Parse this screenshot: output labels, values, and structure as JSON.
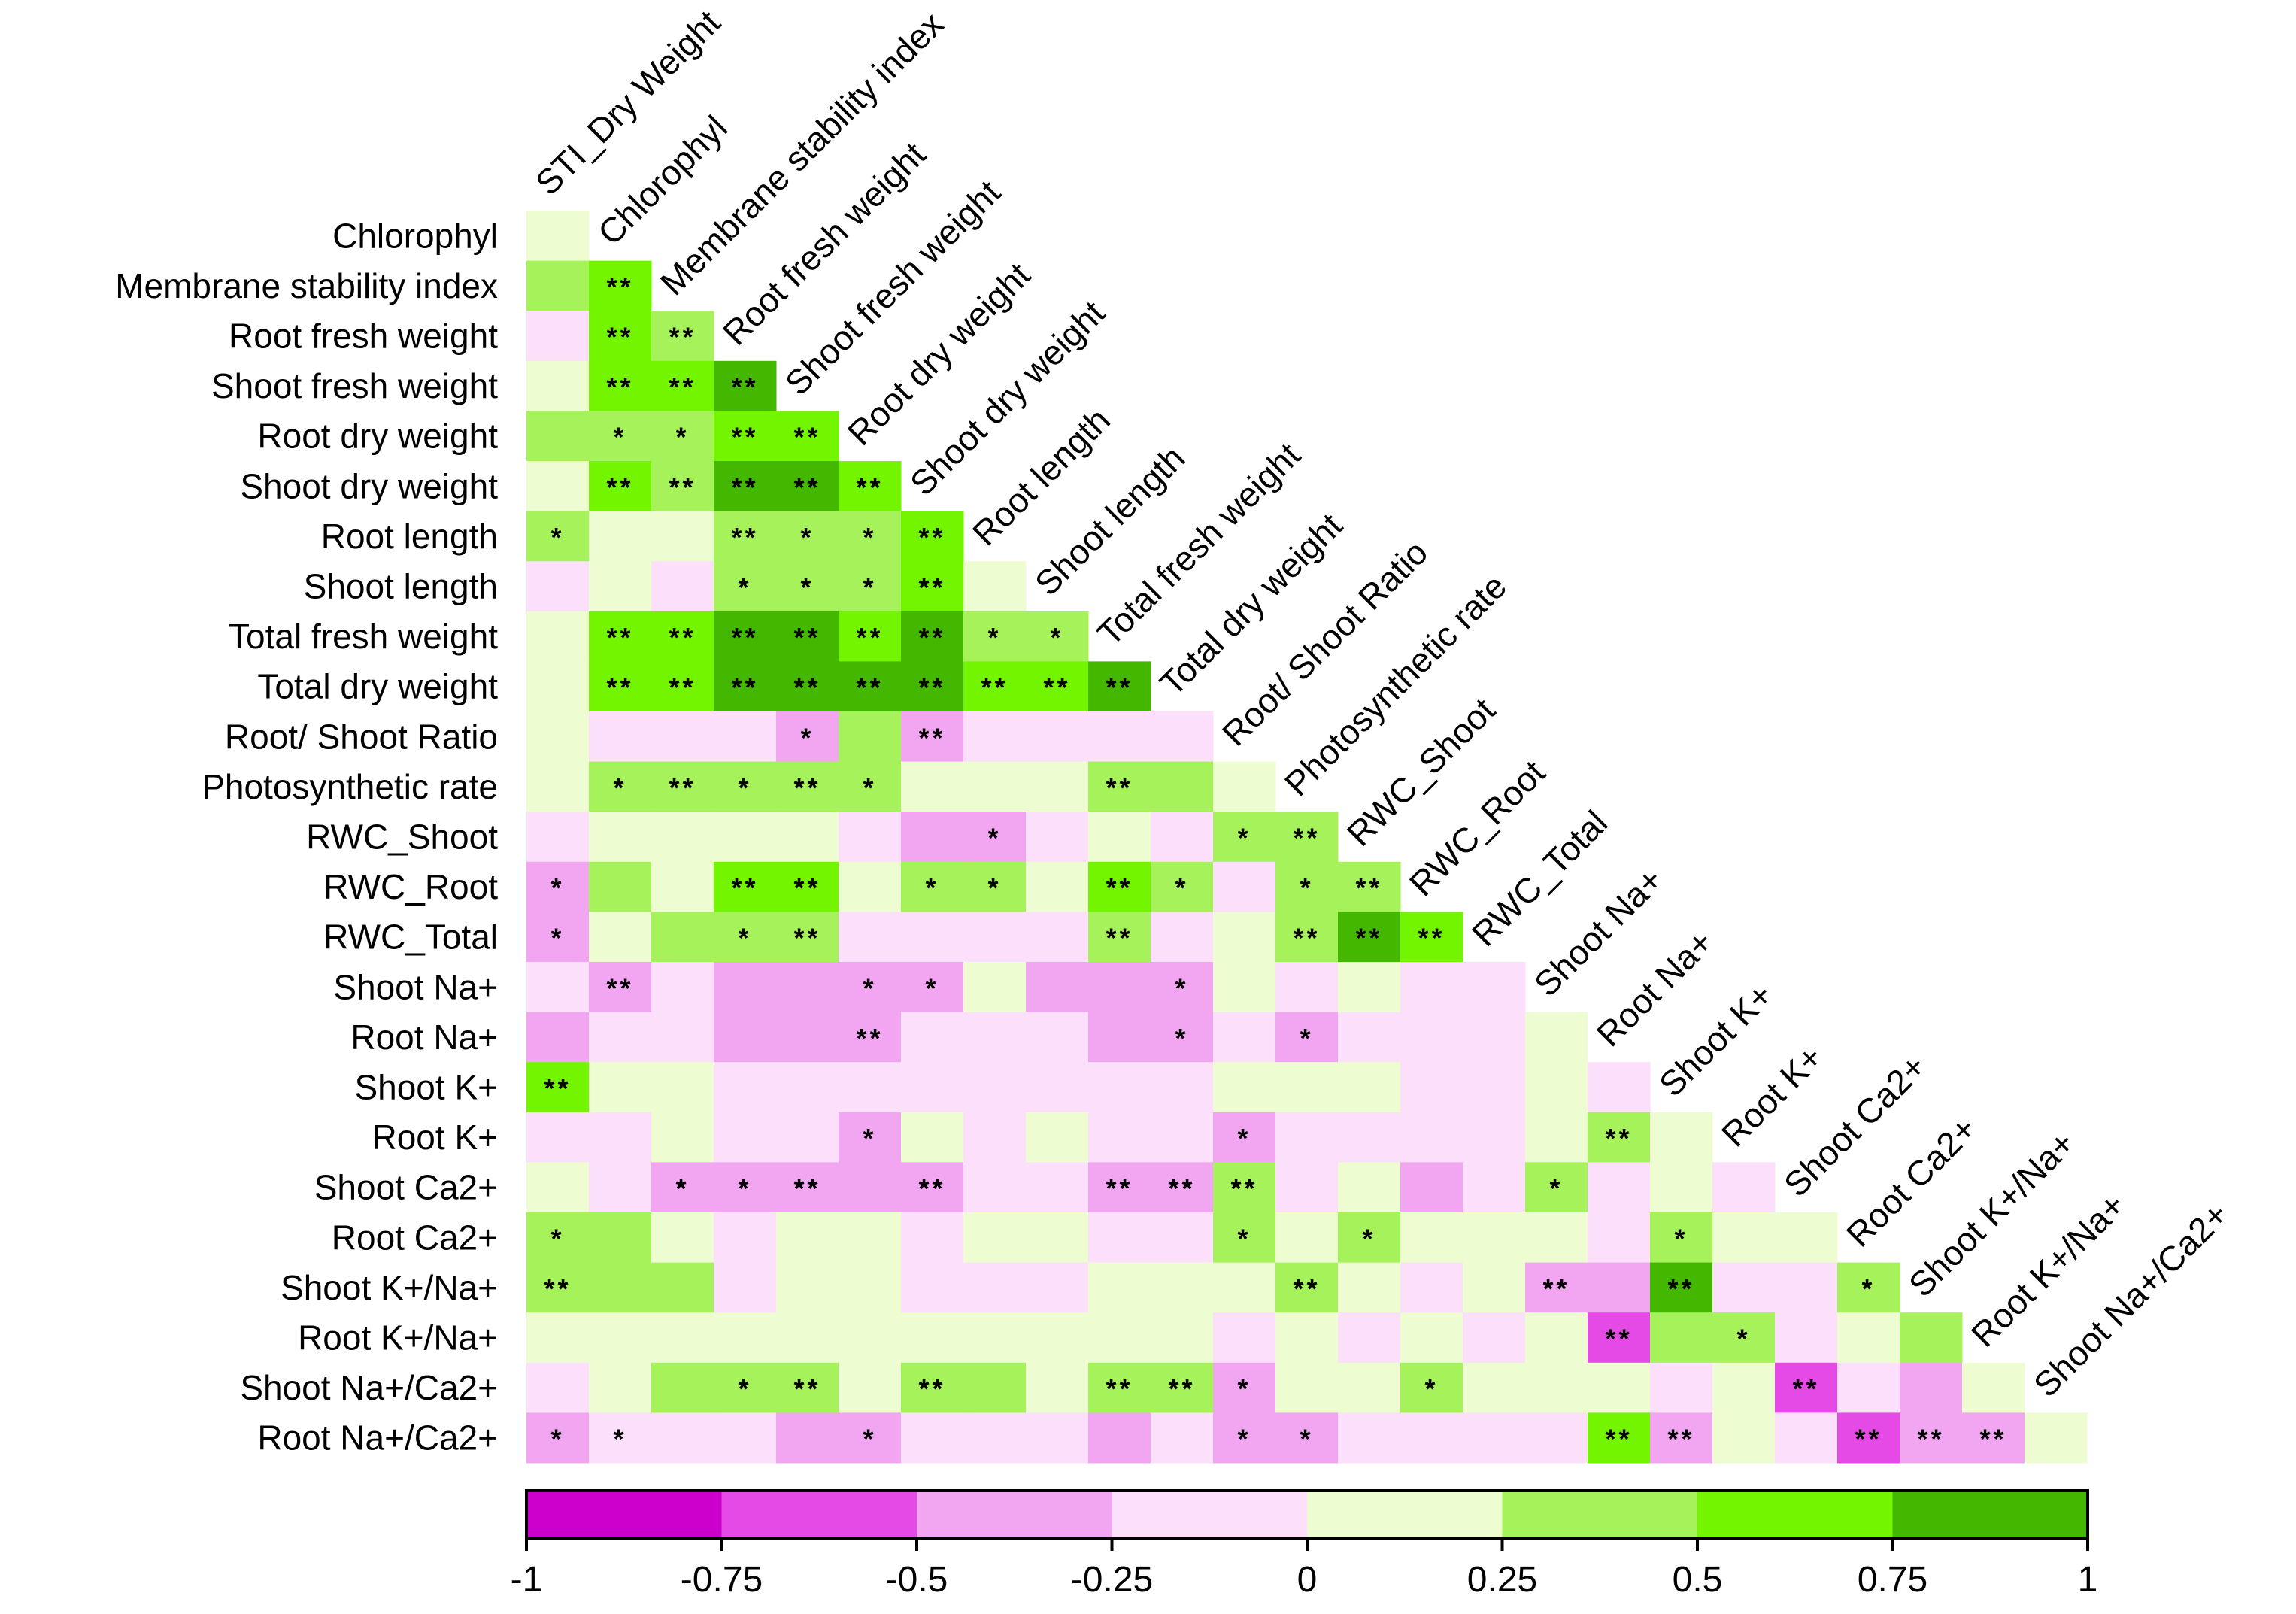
{
  "chart_data": {
    "type": "heatmap",
    "title": "",
    "row_labels": [
      "Chlorophyl",
      "Membrane stability index",
      "Root fresh weight",
      "Shoot fresh weight",
      "Root dry weight",
      "Shoot dry weight",
      "Root length",
      "Shoot length",
      "Total fresh weight",
      "Total dry weight",
      "Root/ Shoot Ratio",
      "Photosynthetic rate",
      "RWC_Shoot",
      "RWC_Root",
      "RWC_Total",
      "Shoot Na+",
      "Root Na+",
      "Shoot K+",
      "Root K+",
      "Shoot Ca2+",
      "Root Ca2+",
      "Shoot K+/Na+",
      "Root K+/Na+",
      "Shoot Na+/Ca2+",
      "Root Na+/Ca2+"
    ],
    "column_labels": [
      "STI_Dry Weight",
      "Chlorophyl",
      "Membrane stability index",
      "Root fresh weight",
      "Shoot fresh weight",
      "Root dry weight",
      "Shoot dry weight",
      "Root length",
      "Shoot length",
      "Total fresh weight",
      "Total dry weight",
      "Root/ Shoot Ratio",
      "Photosynthetic rate",
      "RWC_Shoot",
      "RWC_Root",
      "RWC_Total",
      "Shoot Na+",
      "Root Na+",
      "Shoot K+",
      "Root K+",
      "Shoot Ca2+",
      "Root Ca2+",
      "Shoot K+/Na+",
      "Root K+/Na+",
      "Shoot Na+/Ca2+"
    ],
    "values": [
      [
        0.1
      ],
      [
        0.4,
        0.6
      ],
      [
        -0.1,
        0.6,
        0.4
      ],
      [
        0.1,
        0.6,
        0.6,
        0.9
      ],
      [
        0.4,
        0.4,
        0.4,
        0.6,
        0.6
      ],
      [
        0.1,
        0.6,
        0.4,
        0.9,
        0.9,
        0.6
      ],
      [
        0.4,
        0.1,
        0.1,
        0.4,
        0.4,
        0.4,
        0.6
      ],
      [
        -0.1,
        0.1,
        -0.1,
        0.4,
        0.4,
        0.4,
        0.6,
        0.1
      ],
      [
        0.1,
        0.6,
        0.6,
        0.9,
        0.9,
        0.6,
        0.9,
        0.4,
        0.4
      ],
      [
        0.1,
        0.6,
        0.6,
        0.9,
        0.9,
        0.9,
        0.9,
        0.6,
        0.6,
        0.9
      ],
      [
        0.1,
        -0.1,
        -0.1,
        -0.1,
        -0.4,
        0.4,
        -0.4,
        -0.1,
        -0.1,
        -0.1,
        -0.1
      ],
      [
        0.1,
        0.4,
        0.4,
        0.4,
        0.4,
        0.4,
        0.1,
        0.1,
        0.1,
        0.4,
        0.4,
        0.1
      ],
      [
        -0.1,
        0.1,
        0.1,
        0.1,
        0.1,
        -0.1,
        -0.4,
        -0.4,
        -0.1,
        0.1,
        -0.1,
        0.4,
        0.4
      ],
      [
        -0.4,
        0.4,
        0.1,
        0.6,
        0.6,
        0.1,
        0.4,
        0.4,
        0.1,
        0.6,
        0.4,
        -0.1,
        0.4,
        0.4
      ],
      [
        -0.4,
        0.1,
        0.4,
        0.4,
        0.4,
        -0.1,
        -0.1,
        -0.1,
        -0.1,
        0.4,
        -0.1,
        0.1,
        0.4,
        0.9,
        0.6
      ],
      [
        -0.1,
        -0.4,
        -0.1,
        -0.4,
        -0.4,
        -0.4,
        -0.4,
        0.1,
        -0.4,
        -0.4,
        -0.4,
        0.1,
        -0.1,
        0.1,
        -0.1,
        -0.1
      ],
      [
        -0.4,
        -0.1,
        -0.1,
        -0.4,
        -0.4,
        -0.4,
        -0.1,
        -0.1,
        -0.1,
        -0.4,
        -0.4,
        -0.1,
        -0.4,
        -0.1,
        -0.1,
        -0.1,
        0.1
      ],
      [
        0.6,
        0.1,
        0.1,
        -0.1,
        -0.1,
        -0.1,
        -0.1,
        -0.1,
        -0.1,
        -0.1,
        -0.1,
        0.1,
        0.1,
        0.1,
        -0.1,
        -0.1,
        0.1,
        -0.1
      ],
      [
        -0.1,
        -0.1,
        0.1,
        -0.1,
        -0.1,
        -0.4,
        0.1,
        -0.1,
        0.1,
        -0.1,
        -0.1,
        -0.4,
        -0.1,
        -0.1,
        -0.1,
        -0.1,
        0.1,
        0.4,
        0.1
      ],
      [
        0.1,
        -0.1,
        -0.4,
        -0.4,
        -0.4,
        -0.4,
        -0.4,
        -0.1,
        -0.1,
        -0.4,
        -0.4,
        0.4,
        -0.1,
        0.1,
        -0.4,
        -0.1,
        0.4,
        -0.1,
        0.1,
        -0.1
      ],
      [
        0.4,
        0.4,
        0.1,
        -0.1,
        0.1,
        0.1,
        -0.1,
        0.1,
        0.1,
        -0.1,
        -0.1,
        0.4,
        0.1,
        0.4,
        0.1,
        0.1,
        0.1,
        -0.1,
        0.4,
        0.1,
        0.1
      ],
      [
        0.4,
        0.4,
        0.4,
        -0.1,
        0.1,
        0.1,
        -0.1,
        -0.1,
        -0.1,
        0.1,
        0.1,
        0.1,
        0.4,
        0.1,
        -0.1,
        0.1,
        -0.4,
        -0.4,
        0.9,
        -0.1,
        -0.1,
        0.4
      ],
      [
        0.1,
        0.1,
        0.1,
        0.1,
        0.1,
        0.1,
        0.1,
        0.1,
        0.1,
        0.1,
        0.1,
        -0.1,
        0.1,
        -0.1,
        0.1,
        -0.1,
        0.1,
        -0.6,
        0.4,
        0.4,
        -0.1,
        0.1,
        0.4
      ],
      [
        -0.1,
        0.1,
        0.4,
        0.4,
        0.4,
        0.1,
        0.4,
        0.4,
        0.1,
        0.4,
        0.4,
        -0.4,
        0.1,
        0.1,
        0.4,
        0.1,
        0.1,
        0.1,
        -0.1,
        0.1,
        -0.6,
        -0.1,
        -0.4,
        0.1
      ],
      [
        -0.4,
        -0.1,
        -0.1,
        -0.1,
        -0.4,
        -0.4,
        -0.1,
        -0.1,
        -0.1,
        -0.4,
        -0.1,
        -0.4,
        -0.4,
        -0.1,
        -0.1,
        -0.1,
        -0.1,
        0.6,
        -0.4,
        0.1,
        -0.1,
        -0.6,
        -0.4,
        -0.4,
        0.1
      ]
    ],
    "significance": [
      [
        ""
      ],
      [
        "",
        "**"
      ],
      [
        "",
        "**",
        "**"
      ],
      [
        "",
        "**",
        "**",
        "**"
      ],
      [
        "",
        "*",
        "*",
        "**",
        "**"
      ],
      [
        "",
        "**",
        "**",
        "**",
        "**",
        "**"
      ],
      [
        "*",
        "",
        "",
        "**",
        "*",
        "*",
        "**"
      ],
      [
        "",
        "",
        "",
        "*",
        "*",
        "*",
        "**",
        ""
      ],
      [
        "",
        "**",
        "**",
        "**",
        "**",
        "**",
        "**",
        "*",
        "*"
      ],
      [
        "",
        "**",
        "**",
        "**",
        "**",
        "**",
        "**",
        "**",
        "**",
        "**"
      ],
      [
        "",
        "",
        "",
        "",
        "*",
        "",
        "**",
        "",
        "",
        "",
        "",
        ""
      ],
      [
        "",
        "*",
        "**",
        "*",
        "**",
        "*",
        "",
        "",
        "",
        "**",
        "",
        ""
      ],
      [
        "",
        "",
        "",
        "",
        "",
        "",
        "",
        "*",
        "",
        "",
        "",
        "*",
        "**"
      ],
      [
        "*",
        "",
        "",
        "**",
        "**",
        "",
        "*",
        "*",
        "",
        "**",
        "*",
        "",
        "*",
        "**"
      ],
      [
        "*",
        "",
        "",
        "*",
        "**",
        "",
        "",
        "",
        "",
        "**",
        "",
        "",
        "**",
        "**",
        "**"
      ],
      [
        "",
        "**",
        "",
        "",
        "",
        "*",
        "*",
        "",
        "",
        "",
        "*",
        "",
        "",
        "",
        "",
        ""
      ],
      [
        "",
        "",
        "",
        "",
        "",
        "**",
        "",
        "",
        "",
        "",
        "*",
        "",
        "*",
        "",
        "",
        "",
        ""
      ],
      [
        "**",
        "",
        "",
        "",
        "",
        "",
        "",
        "",
        "",
        "",
        "",
        "",
        "",
        "",
        "",
        "",
        "",
        ""
      ],
      [
        "",
        "",
        "",
        "",
        "",
        "*",
        "",
        "",
        "",
        "",
        "",
        "*",
        "",
        "",
        "",
        "",
        "",
        "**",
        ""
      ],
      [
        "",
        "",
        "*",
        "*",
        "**",
        "",
        "**",
        "",
        "",
        "**",
        "**",
        "**",
        "",
        "",
        "",
        "",
        "*",
        "",
        "",
        ""
      ],
      [
        "*",
        "",
        "",
        "",
        "",
        "",
        "",
        "",
        "",
        "",
        "",
        "*",
        "",
        "*",
        "",
        "",
        "",
        "",
        "*",
        "",
        ""
      ],
      [
        "**",
        "",
        "",
        "",
        "",
        "",
        "",
        "",
        "",
        "",
        "",
        "",
        "**",
        "",
        "",
        "",
        "**",
        "",
        "**",
        "",
        "",
        "*"
      ],
      [
        "",
        "",
        "",
        "",
        "",
        "",
        "",
        "",
        "",
        "",
        "",
        "",
        "",
        "",
        "",
        "",
        "",
        "**",
        "",
        "*",
        "",
        "",
        ""
      ],
      [
        "",
        "",
        "",
        "*",
        "**",
        "",
        "**",
        "",
        "",
        "**",
        "**",
        "*",
        "",
        "",
        "*",
        "",
        "",
        "",
        "",
        "",
        "**",
        "",
        "",
        ""
      ],
      [
        "*",
        "*",
        "",
        "",
        "",
        "*",
        "",
        "",
        "",
        "",
        "",
        "*",
        "*",
        "",
        "",
        "",
        "",
        "**",
        "**",
        "",
        "",
        "**",
        "**",
        "**",
        ""
      ]
    ],
    "colorbar": {
      "ticks": [
        -1,
        -0.75,
        -0.5,
        -0.25,
        0,
        0.25,
        0.5,
        0.75,
        1
      ],
      "tick_labels": [
        "-1",
        "-0.75",
        "-0.5",
        "-0.25",
        "0",
        "0.25",
        "0.5",
        "0.75",
        "1"
      ],
      "range": [
        -1,
        1
      ],
      "colors": [
        "#cc00cc",
        "#e64ae6",
        "#f2a6f2",
        "#fbdffb",
        "#eefcd2",
        "#a6f25a",
        "#74f500",
        "#44b800"
      ]
    }
  }
}
